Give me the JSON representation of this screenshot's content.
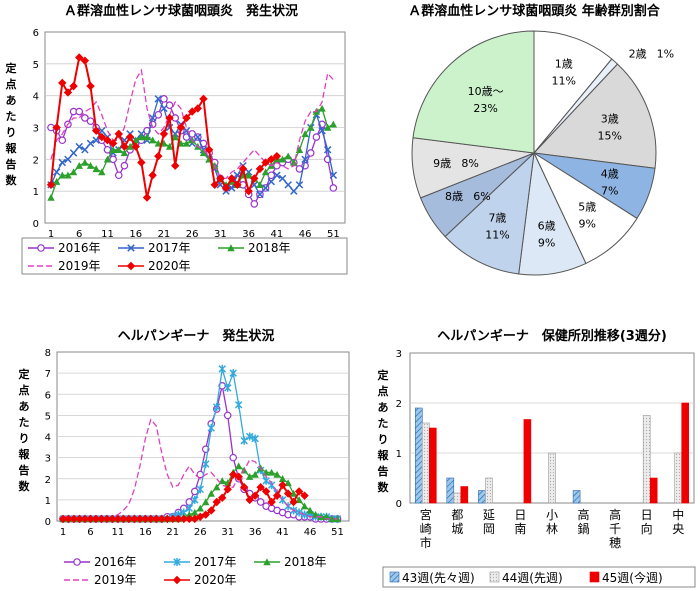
{
  "chart_data": [
    {
      "type": "line",
      "title": "Ａ群溶血性レンサ球菌咽頭炎　発生状況",
      "ylabel": "定点あたり報告数",
      "xlabel": "",
      "ylim": [
        0,
        6
      ],
      "yticks": [
        "0",
        "1",
        "2",
        "3",
        "4",
        "5",
        "6"
      ],
      "xticks": [
        "1",
        "6",
        "11",
        "16",
        "21",
        "26",
        "31",
        "36",
        "41",
        "46",
        "51"
      ],
      "legend": "bottom",
      "series": [
        {
          "name": "2016年",
          "color": "#9933cc",
          "dash": false,
          "marker": "circle",
          "values": [
            3.0,
            2.9,
            2.6,
            3.1,
            3.5,
            3.5,
            3.3,
            3.2,
            3.0,
            2.6,
            2.3,
            2.0,
            1.5,
            1.8,
            2.3,
            2.5,
            2.6,
            2.9,
            3.1,
            3.4,
            3.9,
            3.7,
            3.3,
            2.9,
            2.7,
            2.8,
            2.7,
            2.5,
            2.2,
            1.9,
            1.4,
            1.1,
            1.2,
            1.4,
            1.2,
            0.9,
            0.6,
            0.9,
            1.1,
            1.5,
            1.8,
            1.9,
            2.0,
            1.9,
            1.7,
            1.8,
            2.2,
            2.7,
            3.1,
            2.0,
            1.1
          ]
        },
        {
          "name": "2017年",
          "color": "#3366cc",
          "dash": false,
          "marker": "x",
          "values": [
            1.2,
            1.6,
            1.9,
            2.0,
            2.2,
            2.4,
            2.3,
            2.5,
            2.6,
            2.9,
            2.7,
            2.2,
            2.3,
            2.6,
            2.8,
            2.6,
            2.8,
            2.6,
            3.3,
            3.9,
            3.6,
            3.0,
            2.8,
            3.1,
            2.9,
            2.5,
            2.7,
            2.3,
            2.0,
            1.7,
            1.2,
            1.0,
            1.1,
            1.5,
            1.8,
            1.6,
            1.2,
            0.9,
            1.1,
            1.3,
            1.5,
            1.4,
            1.2,
            1.0,
            1.2,
            2.0,
            3.0,
            3.4,
            2.9,
            2.3,
            1.5
          ]
        },
        {
          "name": "2018年",
          "color": "#2ca02c",
          "dash": false,
          "marker": "triangle",
          "values": [
            0.8,
            1.3,
            1.5,
            1.5,
            1.6,
            1.8,
            1.9,
            1.8,
            1.7,
            1.6,
            2.0,
            2.3,
            2.3,
            2.2,
            2.4,
            2.6,
            2.7,
            2.7,
            2.6,
            2.5,
            2.5,
            2.4,
            2.7,
            2.5,
            2.5,
            2.6,
            2.4,
            2.2,
            2.0,
            1.8,
            1.4,
            1.2,
            1.3,
            1.2,
            1.5,
            1.5,
            1.4,
            1.2,
            1.6,
            1.8,
            2.0,
            2.0,
            2.1,
            1.9,
            2.3,
            2.8,
            3.0,
            3.5,
            3.6,
            3.0,
            3.1
          ]
        },
        {
          "name": "2019年",
          "color": "#e040c0",
          "dash": true,
          "marker": "none",
          "values": [
            2.0,
            2.6,
            2.8,
            3.1,
            3.3,
            3.3,
            3.5,
            3.6,
            3.8,
            3.4,
            2.9,
            2.6,
            2.6,
            3.0,
            3.8,
            4.5,
            4.8,
            3.6,
            3.0,
            2.8,
            3.0,
            3.4,
            3.8,
            3.6,
            3.0,
            2.6,
            2.4,
            2.3,
            2.1,
            1.8,
            1.4,
            1.4,
            1.6,
            1.7,
            1.9,
            2.1,
            2.3,
            2.1,
            1.9,
            1.8,
            1.9,
            1.8,
            1.7,
            1.8,
            2.6,
            3.2,
            3.5,
            3.5,
            3.8,
            4.7,
            4.5
          ]
        },
        {
          "name": "2020年",
          "color": "#ee0000",
          "dash": false,
          "marker": "diamond",
          "values": [
            1.2,
            3.0,
            4.4,
            4.1,
            4.3,
            5.2,
            5.1,
            4.3,
            2.9,
            2.7,
            2.6,
            2.5,
            2.8,
            2.4,
            2.7,
            2.4,
            1.9,
            0.8,
            1.5,
            2.1,
            2.8,
            3.3,
            1.8,
            3.0,
            3.3,
            3.5,
            3.6,
            3.9,
            2.3,
            1.2,
            1.4,
            1.1,
            1.4,
            1.2,
            1.7,
            1.0,
            1.4,
            1.7,
            1.9,
            2.0,
            2.1
          ]
        }
      ]
    },
    {
      "type": "pie",
      "title": "Ａ群溶血性レンサ球菌咽頭炎  年齢群別割合",
      "slices": [
        {
          "label": "1歳",
          "value": 11,
          "text": "11%",
          "color": "#ffffff"
        },
        {
          "label": "2歳",
          "value": 1,
          "text": "1%",
          "color": "#e8f0fa"
        },
        {
          "label": "3歳",
          "value": 15,
          "text": "15%",
          "color": "#d9d9d9"
        },
        {
          "label": "4歳",
          "value": 7,
          "text": "7%",
          "color": "#8eb4e3"
        },
        {
          "label": "5歳",
          "value": 9,
          "text": "9%",
          "color": "#ffffff"
        },
        {
          "label": "6歳",
          "value": 9,
          "text": "9%",
          "color": "#dde8f6"
        },
        {
          "label": "7歳",
          "value": 11,
          "text": "11%",
          "color": "#c0d3ec"
        },
        {
          "label": "8歳",
          "value": 6,
          "text": "6%",
          "color": "#a6bcdd"
        },
        {
          "label": "9歳",
          "value": 8,
          "text": "8%",
          "color": "#e4e4e4"
        },
        {
          "label": "10歳～",
          "value": 23,
          "text": "23%",
          "color": "#ccf2cc"
        }
      ]
    },
    {
      "type": "line",
      "title": "ヘルパンギーナ　発生状況",
      "ylabel": "定点あたり報告数",
      "xlabel": "",
      "ylim": [
        0,
        8
      ],
      "yticks": [
        "0",
        "1",
        "2",
        "3",
        "4",
        "5",
        "6",
        "7",
        "8"
      ],
      "xticks": [
        "1",
        "6",
        "11",
        "16",
        "21",
        "26",
        "31",
        "36",
        "41",
        "46",
        "51"
      ],
      "legend": "bottom",
      "series": [
        {
          "name": "2016年",
          "color": "#9933cc",
          "dash": false,
          "marker": "circle",
          "values": [
            0.1,
            0.1,
            0.1,
            0.1,
            0.1,
            0.1,
            0.1,
            0.1,
            0.1,
            0.1,
            0.1,
            0.1,
            0.1,
            0.1,
            0.1,
            0.1,
            0.1,
            0.1,
            0.1,
            0.2,
            0.2,
            0.4,
            0.6,
            0.9,
            1.4,
            2.2,
            3.4,
            4.6,
            5.3,
            6.4,
            5.0,
            3.0,
            2.0,
            1.5,
            1.3,
            1.1,
            0.9,
            0.7,
            0.6,
            0.5,
            0.4,
            0.3,
            0.3,
            0.2,
            0.2,
            0.2,
            0.1,
            0.1,
            0.1,
            0.1,
            0.1
          ]
        },
        {
          "name": "2017年",
          "color": "#33aadd",
          "dash": false,
          "marker": "star",
          "values": [
            0.1,
            0.1,
            0.1,
            0.1,
            0.1,
            0.1,
            0.1,
            0.1,
            0.1,
            0.1,
            0.1,
            0.1,
            0.1,
            0.1,
            0.1,
            0.1,
            0.1,
            0.1,
            0.1,
            0.1,
            0.2,
            0.3,
            0.4,
            0.6,
            1.0,
            1.5,
            2.7,
            4.4,
            5.4,
            7.2,
            6.3,
            7.0,
            5.5,
            3.8,
            4.0,
            3.9,
            2.4,
            1.9,
            1.7,
            1.3,
            1.0,
            0.7,
            0.5,
            0.4,
            0.3,
            0.3,
            0.2,
            0.2,
            0.2,
            0.1,
            0.1
          ]
        },
        {
          "name": "2018年",
          "color": "#2ca02c",
          "dash": false,
          "marker": "triangle",
          "values": [
            0.1,
            0.1,
            0.1,
            0.1,
            0.1,
            0.1,
            0.1,
            0.1,
            0.1,
            0.1,
            0.1,
            0.1,
            0.1,
            0.1,
            0.1,
            0.1,
            0.1,
            0.1,
            0.1,
            0.1,
            0.1,
            0.1,
            0.2,
            0.3,
            0.4,
            0.6,
            0.9,
            1.3,
            1.6,
            1.9,
            1.8,
            2.3,
            2.6,
            2.4,
            2.1,
            2.2,
            2.5,
            2.3,
            2.3,
            2.2,
            2.0,
            1.8,
            1.3,
            1.0,
            0.7,
            0.5,
            0.3,
            0.2,
            0.2,
            0.1,
            0.1
          ]
        },
        {
          "name": "2019年",
          "color": "#e040c0",
          "dash": true,
          "marker": "none",
          "values": [
            0.2,
            0.2,
            0.2,
            0.1,
            0.1,
            0.1,
            0.1,
            0.1,
            0.1,
            0.2,
            0.3,
            0.5,
            0.8,
            1.5,
            2.6,
            3.9,
            4.8,
            4.5,
            3.2,
            2.2,
            1.6,
            1.7,
            2.2,
            2.6,
            2.2,
            2.0,
            2.2,
            2.3,
            2.0,
            1.7,
            1.6,
            1.6,
            2.1,
            2.4,
            2.9,
            2.8,
            2.5,
            2.1,
            1.8,
            1.4,
            1.0,
            0.7,
            0.5,
            0.4,
            0.3,
            0.2,
            0.2,
            0.2,
            0.1,
            0.1,
            0.1
          ]
        },
        {
          "name": "2020年",
          "color": "#ee0000",
          "dash": false,
          "marker": "diamond",
          "values": [
            0.1,
            0.1,
            0.1,
            0.1,
            0.1,
            0.1,
            0.1,
            0.1,
            0.1,
            0.1,
            0.1,
            0.1,
            0.1,
            0.1,
            0.1,
            0.1,
            0.1,
            0.1,
            0.1,
            0.1,
            0.1,
            0.1,
            0.1,
            0.1,
            0.1,
            0.2,
            0.3,
            0.5,
            0.9,
            1.1,
            1.5,
            2.2,
            2.1,
            1.6,
            1.0,
            1.2,
            1.6,
            1.4,
            0.9,
            1.2,
            1.7,
            1.3,
            0.9,
            1.4,
            1.2
          ]
        }
      ]
    },
    {
      "type": "bar",
      "title": "ヘルパンギーナ　保健所別推移(3週分)",
      "ylabel": "定点あたり報告数",
      "xlabel": "",
      "ylim": [
        0,
        3
      ],
      "yticks": [
        "0",
        "1",
        "2",
        "3"
      ],
      "categories": [
        "宮崎市",
        "都城",
        "延岡",
        "日南",
        "小林",
        "高鍋",
        "高千穂",
        "日向",
        "中央"
      ],
      "legend": "bottom",
      "series": [
        {
          "name": "43週(先々週)",
          "color": "#9ec8ea",
          "values": [
            1.9,
            0.5,
            0.25,
            0,
            0,
            0.25,
            0,
            0,
            0
          ]
        },
        {
          "name": "44週(先週)",
          "color": "#e6e6e6",
          "values": [
            1.6,
            0.2,
            0.5,
            0,
            1.0,
            0,
            0,
            1.75,
            1.0
          ]
        },
        {
          "name": "45週(今週)",
          "color": "#ee0000",
          "values": [
            1.5,
            0.33,
            0,
            1.67,
            0,
            0,
            0,
            0.5,
            2.0
          ]
        }
      ]
    }
  ]
}
